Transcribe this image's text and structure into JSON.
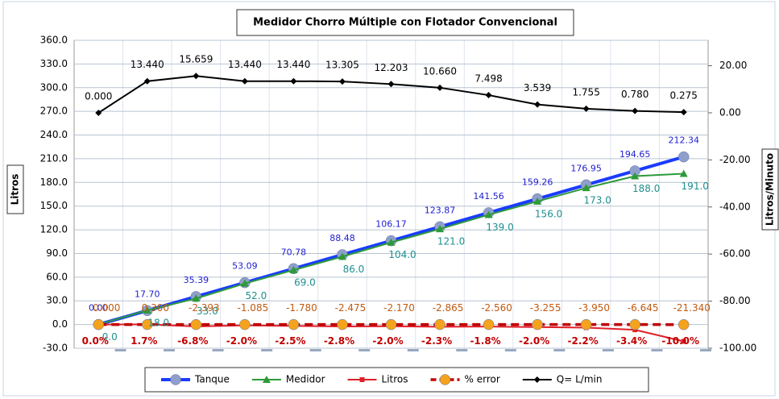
{
  "chart_data": {
    "type": "line",
    "title": "Medidor Chorro Múltiple con Flotador Convencional",
    "y_label": "Litros",
    "y2_label": "Litros/Minuto",
    "categories": [
      null,
      null,
      null,
      null,
      null,
      null,
      null,
      null,
      null,
      null,
      null,
      null,
      null
    ],
    "ylim": [
      -30,
      360
    ],
    "yticks": [
      {
        "value": -30,
        "label": "-30.0"
      },
      {
        "value": 0,
        "label": "0.0"
      },
      {
        "value": 30,
        "label": "30.0"
      },
      {
        "value": 60,
        "label": "60.0"
      },
      {
        "value": 90,
        "label": "90.0"
      },
      {
        "value": 120,
        "label": "120.0"
      },
      {
        "value": 150,
        "label": "150.0"
      },
      {
        "value": 180,
        "label": "180.0"
      },
      {
        "value": 210,
        "label": "210.0"
      },
      {
        "value": 240,
        "label": "240.0"
      },
      {
        "value": 270,
        "label": "270.0"
      },
      {
        "value": 300,
        "label": "300.0"
      },
      {
        "value": 330,
        "label": "330.0"
      },
      {
        "value": 360,
        "label": "360.0"
      }
    ],
    "y2lim": [
      -100,
      30.8
    ],
    "y2ticks": [
      {
        "value": -100,
        "label": "-100.00"
      },
      {
        "value": -80,
        "label": "-80.00"
      },
      {
        "value": -60,
        "label": "-60.00"
      },
      {
        "value": -40,
        "label": "-40.00"
      },
      {
        "value": -20,
        "label": "-20.00"
      },
      {
        "value": 0,
        "label": "0.00"
      },
      {
        "value": 20,
        "label": "20.00"
      }
    ],
    "grid": true,
    "legend": "bottom",
    "series": [
      {
        "name": "Tanque",
        "color": "#1a3cff",
        "marker": "circle",
        "marker_color": "#8f9fcc",
        "label_color": "#2020d0",
        "label_pos": "above",
        "values": [
          0,
          17.7,
          35.39,
          53.09,
          70.78,
          88.48,
          106.17,
          123.87,
          141.56,
          159.26,
          176.95,
          194.65,
          212.34
        ],
        "value_labels": [
          "0.00",
          "17.70",
          "35.39",
          "53.09",
          "70.78",
          "88.48",
          "106.17",
          "123.87",
          "141.56",
          "159.26",
          "176.95",
          "194.65",
          "212.34"
        ]
      },
      {
        "name": "Medidor",
        "color": "#2e9a3a",
        "marker": "triangle",
        "marker_color": "#2e9a3a",
        "label_color": "#1f8f8f",
        "label_pos": "below",
        "values": [
          0,
          18,
          33,
          52,
          69,
          86,
          104,
          121,
          139,
          156,
          173,
          188,
          191
        ],
        "value_labels": [
          "0.0",
          "18.0",
          "33.0",
          "52.0",
          "69.0",
          "86.0",
          "104.0",
          "121.0",
          "139.0",
          "156.0",
          "173.0",
          "188.0",
          "191.0"
        ]
      },
      {
        "name": "Litros",
        "color": "#e0202a",
        "marker": "square",
        "marker_color": "#e0202a",
        "label_color": "#c05a10",
        "label_pos": "litros",
        "values": [
          0,
          0.3,
          -2.393,
          -1.085,
          -1.78,
          -2.475,
          -2.17,
          -2.865,
          -2.56,
          -3.255,
          -3.95,
          -6.645,
          -21.34
        ],
        "value_labels": [
          "0.000",
          "0.300",
          "-2.393",
          "-1.085",
          "-1.780",
          "-2.475",
          "-2.170",
          "-2.865",
          "-2.560",
          "-3.255",
          "-3.950",
          "-6.645",
          "-21.340"
        ]
      },
      {
        "name": "% error",
        "color": "#c00000",
        "dash": true,
        "marker": "circle",
        "marker_color": "#f5a31c",
        "label_color": "#c00000",
        "label_pos": "error",
        "values": [
          0,
          0.017,
          -0.068,
          -0.02,
          -0.025,
          -0.028,
          -0.02,
          -0.023,
          -0.018,
          -0.02,
          -0.022,
          -0.034,
          -0.1
        ],
        "value_labels": [
          "0.0%",
          "1.7%",
          "-6.8%",
          "-2.0%",
          "-2.5%",
          "-2.8%",
          "-2.0%",
          "-2.3%",
          "-1.8%",
          "-2.0%",
          "-2.2%",
          "-3.4%",
          "-10.0%"
        ]
      },
      {
        "name": "Q= L/min",
        "color": "#000000",
        "axis": "y2",
        "marker": "diamond",
        "marker_color": "#000000",
        "label_color": "#000000",
        "label_pos": "above",
        "values": [
          0,
          13.44,
          15.659,
          13.44,
          13.44,
          13.305,
          12.203,
          10.66,
          7.498,
          3.539,
          1.755,
          0.78,
          0.275
        ],
        "value_labels": [
          "0.000",
          "13.440",
          "15.659",
          "13.440",
          "13.440",
          "13.305",
          "12.203",
          "10.660",
          "7.498",
          "3.539",
          "1.755",
          "0.780",
          "0.275"
        ]
      }
    ]
  }
}
